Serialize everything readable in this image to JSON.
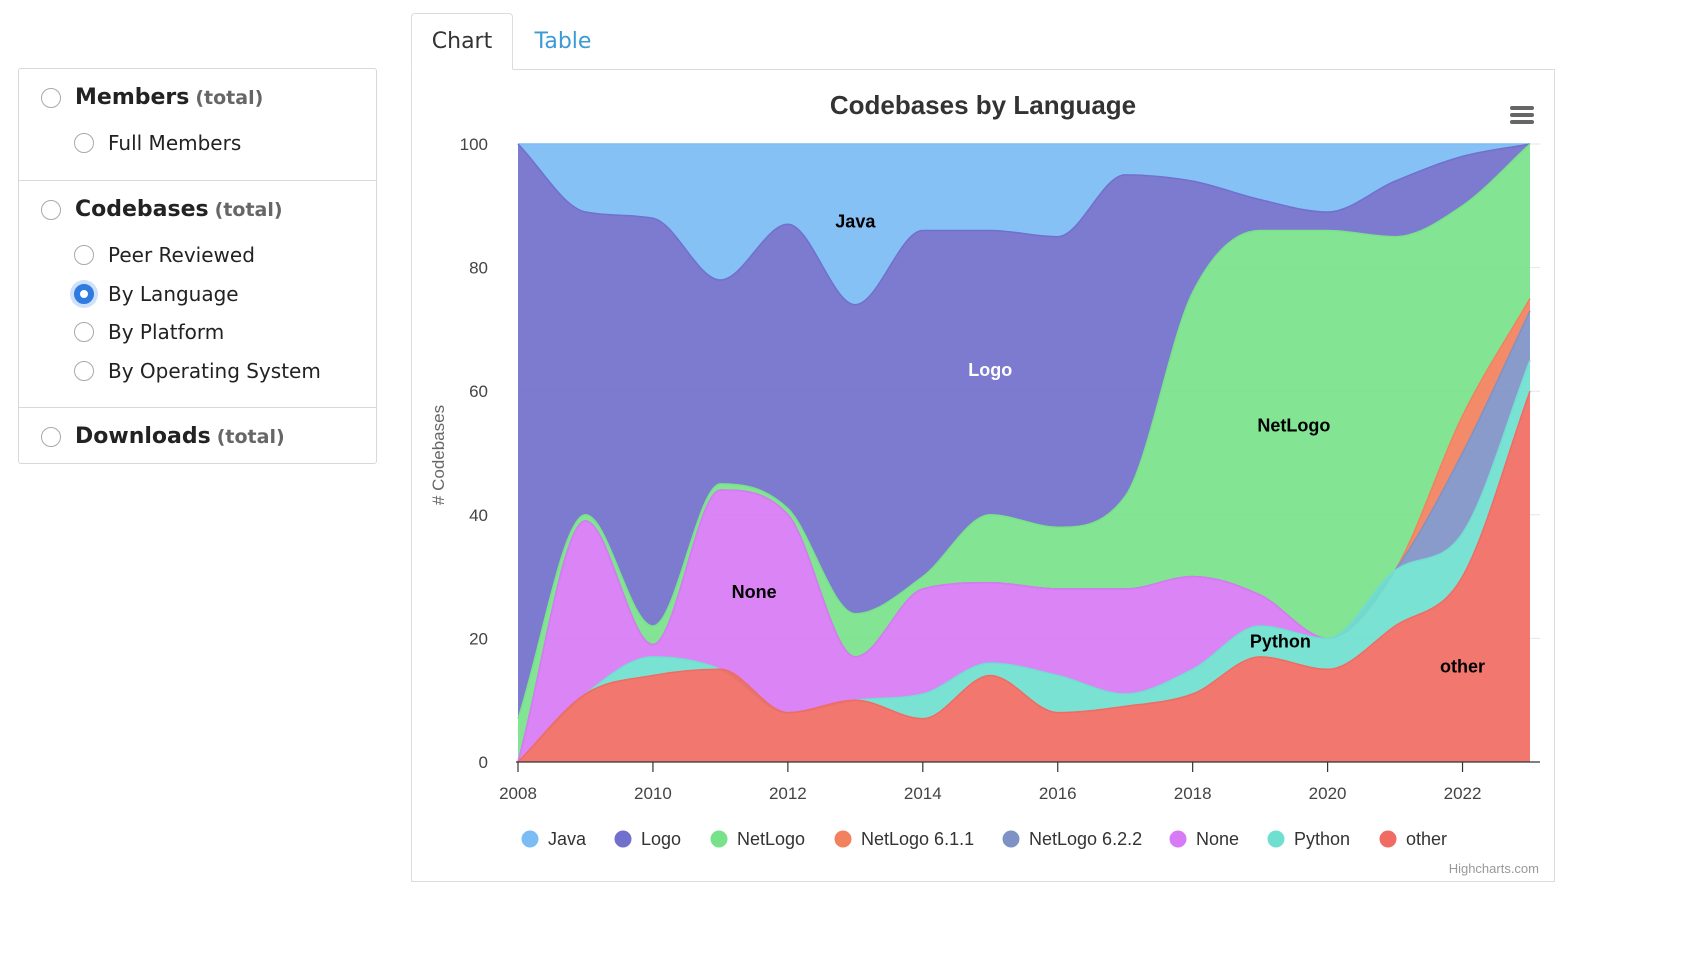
{
  "sidebar": {
    "groups": [
      {
        "label": "Members",
        "suffix": "(total)",
        "items": [
          {
            "label": "Full Members"
          }
        ]
      },
      {
        "label": "Codebases",
        "suffix": "(total)",
        "items": [
          {
            "label": "Peer Reviewed"
          },
          {
            "label": "By Language"
          },
          {
            "label": "By Platform"
          },
          {
            "label": "By Operating System"
          }
        ]
      },
      {
        "label": "Downloads",
        "suffix": "(total)",
        "items": []
      }
    ],
    "selected": "By Language",
    "accent": "#2f7be0"
  },
  "tabs": [
    {
      "label": "Chart",
      "active": true
    },
    {
      "label": "Table",
      "active": false
    }
  ],
  "menu_icon": "hamburger-icon",
  "credits": "Highcharts.com",
  "chart_data": {
    "type": "area",
    "stacking": "percent",
    "title": "Codebases by Language",
    "ylabel": "# Codebases",
    "xlabel": "",
    "ylim": [
      0,
      100
    ],
    "yticks": [
      0,
      20,
      40,
      60,
      80,
      100
    ],
    "xticks": [
      2008,
      2010,
      2012,
      2014,
      2016,
      2018,
      2020,
      2022
    ],
    "grid": true,
    "legend_position": "bottom",
    "x": [
      2008,
      2009,
      2010,
      2011,
      2012,
      2013,
      2014,
      2015,
      2016,
      2017,
      2018,
      2019,
      2020,
      2021,
      2022,
      2023
    ],
    "series": [
      {
        "name": "other",
        "color": "#f06b63",
        "values": [
          0,
          11,
          14,
          15,
          8,
          10,
          7,
          14,
          8,
          9,
          11,
          17,
          15,
          22,
          30,
          60
        ]
      },
      {
        "name": "Python",
        "color": "#6fe0cf",
        "values": [
          0,
          0,
          3,
          0,
          0,
          0,
          4,
          2,
          6,
          2,
          4,
          5,
          5,
          9,
          7,
          5
        ]
      },
      {
        "name": "None",
        "color": "#d77af5",
        "values": [
          0,
          28,
          2,
          29,
          32,
          7,
          17,
          13,
          14,
          17,
          15,
          5,
          0,
          0,
          0,
          0
        ]
      },
      {
        "name": "NetLogo 6.2.2",
        "color": "#7f92c6",
        "values": [
          0,
          0,
          0,
          0,
          0,
          0,
          0,
          0,
          0,
          0,
          0,
          0,
          0,
          0,
          13,
          8
        ]
      },
      {
        "name": "NetLogo 6.1.1",
        "color": "#f2815d",
        "values": [
          0,
          0,
          0,
          0,
          0,
          0,
          0,
          0,
          0,
          0,
          0,
          0,
          0,
          0,
          6,
          2
        ]
      },
      {
        "name": "NetLogo",
        "color": "#78e28a",
        "values": [
          7,
          1,
          3,
          1,
          1,
          7,
          2,
          11,
          10,
          15,
          46,
          59,
          66,
          54,
          34,
          25
        ]
      },
      {
        "name": "Logo",
        "color": "#7170cc",
        "values": [
          93,
          49,
          66,
          33,
          46,
          50,
          56,
          46,
          47,
          52,
          18,
          5,
          3,
          9,
          8,
          0
        ]
      },
      {
        "name": "Java",
        "color": "#7cbcf5",
        "values": [
          0,
          11,
          12,
          22,
          13,
          26,
          14,
          14,
          15,
          5,
          6,
          9,
          11,
          6,
          2,
          0
        ]
      }
    ],
    "legend_order": [
      "Java",
      "Logo",
      "NetLogo",
      "NetLogo 6.1.1",
      "NetLogo 6.2.2",
      "None",
      "Python",
      "other"
    ],
    "area_labels": [
      {
        "text": "Java",
        "x": 2013.0,
        "y": 86.5
      },
      {
        "text": "Logo",
        "x": 2015.0,
        "y": 62.5
      },
      {
        "text": "NetLogo",
        "x": 2019.5,
        "y": 53.5
      },
      {
        "text": "None",
        "x": 2011.5,
        "y": 26.5
      },
      {
        "text": "Python",
        "x": 2019.3,
        "y": 18.5
      },
      {
        "text": "other",
        "x": 2022.0,
        "y": 14.5
      }
    ]
  }
}
